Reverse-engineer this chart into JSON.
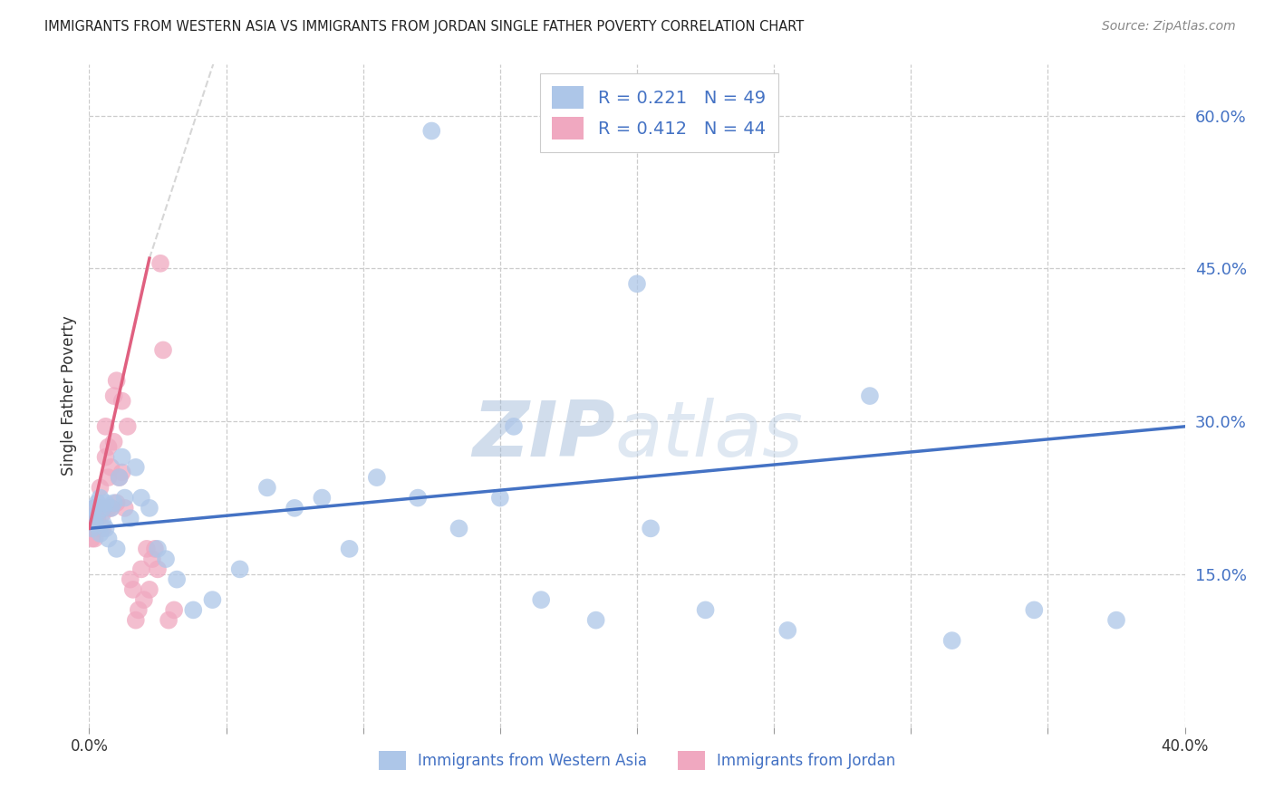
{
  "title": "IMMIGRANTS FROM WESTERN ASIA VS IMMIGRANTS FROM JORDAN SINGLE FATHER POVERTY CORRELATION CHART",
  "source": "Source: ZipAtlas.com",
  "ylabel": "Single Father Poverty",
  "right_yticks": [
    "15.0%",
    "30.0%",
    "45.0%",
    "60.0%"
  ],
  "right_ytick_vals": [
    0.15,
    0.3,
    0.45,
    0.6
  ],
  "legend_r1": "0.221",
  "legend_n1": "49",
  "legend_r2": "0.412",
  "legend_n2": "44",
  "color_blue": "#adc6e8",
  "color_pink": "#f0a8c0",
  "color_blue_line": "#4472c4",
  "color_pink_line": "#e06080",
  "color_text_blue": "#4472c4",
  "watermark_zip": "ZIP",
  "watermark_atlas": "atlas",
  "xlim": [
    0.0,
    0.4
  ],
  "ylim": [
    0.0,
    0.65
  ],
  "western_asia_x": [
    0.001,
    0.001,
    0.002,
    0.002,
    0.003,
    0.003,
    0.004,
    0.004,
    0.005,
    0.005,
    0.006,
    0.006,
    0.007,
    0.008,
    0.009,
    0.01,
    0.011,
    0.012,
    0.013,
    0.015,
    0.017,
    0.019,
    0.022,
    0.025,
    0.028,
    0.032,
    0.038,
    0.045,
    0.055,
    0.065,
    0.075,
    0.085,
    0.095,
    0.105,
    0.12,
    0.135,
    0.15,
    0.165,
    0.185,
    0.205,
    0.225,
    0.255,
    0.285,
    0.315,
    0.345,
    0.375,
    0.125,
    0.155,
    0.2
  ],
  "western_asia_y": [
    0.195,
    0.205,
    0.2,
    0.215,
    0.21,
    0.22,
    0.225,
    0.19,
    0.2,
    0.215,
    0.195,
    0.22,
    0.185,
    0.215,
    0.22,
    0.175,
    0.245,
    0.265,
    0.225,
    0.205,
    0.255,
    0.225,
    0.215,
    0.175,
    0.165,
    0.145,
    0.115,
    0.125,
    0.155,
    0.235,
    0.215,
    0.225,
    0.175,
    0.245,
    0.225,
    0.195,
    0.225,
    0.125,
    0.105,
    0.195,
    0.115,
    0.095,
    0.325,
    0.085,
    0.115,
    0.105,
    0.585,
    0.295,
    0.435
  ],
  "jordan_x": [
    0.001,
    0.001,
    0.001,
    0.002,
    0.002,
    0.002,
    0.003,
    0.003,
    0.003,
    0.004,
    0.004,
    0.005,
    0.005,
    0.006,
    0.006,
    0.007,
    0.007,
    0.007,
    0.008,
    0.008,
    0.009,
    0.009,
    0.01,
    0.01,
    0.011,
    0.012,
    0.012,
    0.013,
    0.014,
    0.015,
    0.016,
    0.017,
    0.018,
    0.019,
    0.02,
    0.021,
    0.022,
    0.023,
    0.024,
    0.025,
    0.026,
    0.027,
    0.029,
    0.031
  ],
  "jordan_y": [
    0.195,
    0.205,
    0.185,
    0.2,
    0.215,
    0.185,
    0.205,
    0.195,
    0.21,
    0.235,
    0.215,
    0.195,
    0.21,
    0.295,
    0.265,
    0.275,
    0.245,
    0.215,
    0.255,
    0.215,
    0.325,
    0.28,
    0.34,
    0.22,
    0.245,
    0.32,
    0.25,
    0.215,
    0.295,
    0.145,
    0.135,
    0.105,
    0.115,
    0.155,
    0.125,
    0.175,
    0.135,
    0.165,
    0.175,
    0.155,
    0.455,
    0.37,
    0.105,
    0.115
  ],
  "xtick_positions": [
    0.0,
    0.05,
    0.1,
    0.15,
    0.2,
    0.25,
    0.3,
    0.35,
    0.4
  ],
  "grid_ytick_vals": [
    0.15,
    0.3,
    0.45,
    0.6
  ]
}
